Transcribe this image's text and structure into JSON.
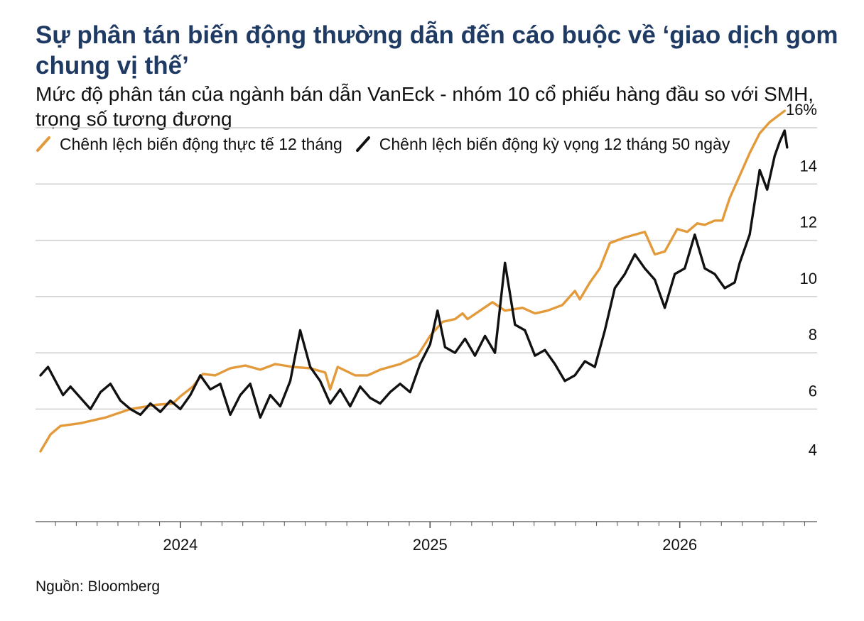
{
  "title": "Sự phân tán biến động thường dẫn đến cáo buộc về ‘giao dịch gom chung vị thế’",
  "subtitle": "Mức độ phân tán của ngành bán dẫn VanEck - nhóm 10 cổ phiếu hàng đầu so với SMH, trọng số tương đương",
  "source": "Nguồn: Bloomberg",
  "colors": {
    "realized": "#e39a3a",
    "implied": "#111111",
    "title": "#1f3a63",
    "grid": "#cfcfcf",
    "axis": "#555555"
  },
  "chart_data": {
    "type": "line",
    "title": "Sự phân tán biến động thường dẫn đến cáo buộc về ‘giao dịch gom chung vị thế’",
    "subtitle": "Mức độ phân tán của ngành bán dẫn VanEck - nhóm 10 cổ phiếu hàng đầu so với SMH, trọng số tương đương",
    "xlabel": "",
    "ylabel": "",
    "x_range": [
      2023.42,
      2026.55
    ],
    "ylim": [
      4,
      16.5
    ],
    "y_ticks": [
      4,
      6,
      8,
      10,
      12,
      14,
      16
    ],
    "y_tick_labels": [
      "4",
      "6",
      "8",
      "10",
      "12",
      "14",
      "16%"
    ],
    "x_ticks": [
      2024,
      2025,
      2026
    ],
    "x_tick_labels": [
      "2024",
      "2025",
      "2026"
    ],
    "grid": true,
    "legend_position": "top-left",
    "series": [
      {
        "name": "Chênh lệch biến động thực tế 12 tháng",
        "color": "#e39a3a",
        "points": [
          [
            2023.44,
            4.5
          ],
          [
            2023.48,
            5.1
          ],
          [
            2023.52,
            5.4
          ],
          [
            2023.6,
            5.5
          ],
          [
            2023.7,
            5.7
          ],
          [
            2023.8,
            6.0
          ],
          [
            2023.9,
            6.15
          ],
          [
            2023.97,
            6.2
          ],
          [
            2024.0,
            6.45
          ],
          [
            2024.05,
            6.8
          ],
          [
            2024.09,
            7.25
          ],
          [
            2024.14,
            7.2
          ],
          [
            2024.2,
            7.45
          ],
          [
            2024.26,
            7.55
          ],
          [
            2024.32,
            7.4
          ],
          [
            2024.38,
            7.6
          ],
          [
            2024.45,
            7.5
          ],
          [
            2024.52,
            7.45
          ],
          [
            2024.58,
            7.3
          ],
          [
            2024.6,
            6.7
          ],
          [
            2024.63,
            7.5
          ],
          [
            2024.7,
            7.2
          ],
          [
            2024.75,
            7.2
          ],
          [
            2024.8,
            7.4
          ],
          [
            2024.88,
            7.6
          ],
          [
            2024.95,
            7.9
          ],
          [
            2025.0,
            8.6
          ],
          [
            2025.05,
            9.1
          ],
          [
            2025.1,
            9.2
          ],
          [
            2025.13,
            9.4
          ],
          [
            2025.15,
            9.2
          ],
          [
            2025.2,
            9.5
          ],
          [
            2025.25,
            9.8
          ],
          [
            2025.3,
            9.5
          ],
          [
            2025.37,
            9.6
          ],
          [
            2025.42,
            9.4
          ],
          [
            2025.47,
            9.5
          ],
          [
            2025.53,
            9.7
          ],
          [
            2025.58,
            10.2
          ],
          [
            2025.6,
            9.9
          ],
          [
            2025.64,
            10.5
          ],
          [
            2025.68,
            11.0
          ],
          [
            2025.72,
            11.9
          ],
          [
            2025.78,
            12.1
          ],
          [
            2025.86,
            12.3
          ],
          [
            2025.9,
            11.5
          ],
          [
            2025.94,
            11.6
          ],
          [
            2025.99,
            12.4
          ],
          [
            2026.03,
            12.3
          ],
          [
            2026.07,
            12.6
          ],
          [
            2026.1,
            12.55
          ],
          [
            2026.14,
            12.7
          ],
          [
            2026.17,
            12.7
          ],
          [
            2026.2,
            13.5
          ],
          [
            2026.24,
            14.3
          ],
          [
            2026.28,
            15.1
          ],
          [
            2026.32,
            15.8
          ],
          [
            2026.36,
            16.2
          ],
          [
            2026.42,
            16.6
          ]
        ]
      },
      {
        "name": "Chênh lệch biến động kỳ vọng 12 tháng 50 ngày",
        "color": "#111111",
        "points": [
          [
            2023.44,
            7.2
          ],
          [
            2023.47,
            7.5
          ],
          [
            2023.5,
            7.0
          ],
          [
            2023.53,
            6.5
          ],
          [
            2023.56,
            6.8
          ],
          [
            2023.6,
            6.4
          ],
          [
            2023.64,
            6.0
          ],
          [
            2023.68,
            6.6
          ],
          [
            2023.72,
            6.9
          ],
          [
            2023.76,
            6.3
          ],
          [
            2023.8,
            6.0
          ],
          [
            2023.84,
            5.8
          ],
          [
            2023.88,
            6.2
          ],
          [
            2023.92,
            5.9
          ],
          [
            2023.96,
            6.3
          ],
          [
            2024.0,
            6.0
          ],
          [
            2024.04,
            6.5
          ],
          [
            2024.08,
            7.2
          ],
          [
            2024.12,
            6.7
          ],
          [
            2024.16,
            6.9
          ],
          [
            2024.2,
            5.8
          ],
          [
            2024.24,
            6.5
          ],
          [
            2024.28,
            6.9
          ],
          [
            2024.32,
            5.7
          ],
          [
            2024.36,
            6.5
          ],
          [
            2024.4,
            6.1
          ],
          [
            2024.44,
            7.0
          ],
          [
            2024.48,
            8.8
          ],
          [
            2024.52,
            7.5
          ],
          [
            2024.56,
            7.0
          ],
          [
            2024.6,
            6.2
          ],
          [
            2024.64,
            6.7
          ],
          [
            2024.68,
            6.1
          ],
          [
            2024.72,
            6.8
          ],
          [
            2024.76,
            6.4
          ],
          [
            2024.8,
            6.2
          ],
          [
            2024.84,
            6.6
          ],
          [
            2024.88,
            6.9
          ],
          [
            2024.92,
            6.6
          ],
          [
            2024.96,
            7.6
          ],
          [
            2025.0,
            8.3
          ],
          [
            2025.03,
            9.5
          ],
          [
            2025.06,
            8.2
          ],
          [
            2025.1,
            8.0
          ],
          [
            2025.14,
            8.5
          ],
          [
            2025.18,
            7.9
          ],
          [
            2025.22,
            8.6
          ],
          [
            2025.26,
            8.0
          ],
          [
            2025.3,
            11.2
          ],
          [
            2025.34,
            9.0
          ],
          [
            2025.38,
            8.8
          ],
          [
            2025.42,
            7.9
          ],
          [
            2025.46,
            8.1
          ],
          [
            2025.5,
            7.6
          ],
          [
            2025.54,
            7.0
          ],
          [
            2025.58,
            7.2
          ],
          [
            2025.62,
            7.7
          ],
          [
            2025.66,
            7.5
          ],
          [
            2025.7,
            8.8
          ],
          [
            2025.74,
            10.3
          ],
          [
            2025.78,
            10.8
          ],
          [
            2025.82,
            11.5
          ],
          [
            2025.86,
            11.0
          ],
          [
            2025.9,
            10.6
          ],
          [
            2025.94,
            9.6
          ],
          [
            2025.98,
            10.8
          ],
          [
            2026.02,
            11.0
          ],
          [
            2026.06,
            12.2
          ],
          [
            2026.1,
            11.0
          ],
          [
            2026.14,
            10.8
          ],
          [
            2026.18,
            10.3
          ],
          [
            2026.22,
            10.5
          ],
          [
            2026.24,
            11.2
          ],
          [
            2026.28,
            12.2
          ],
          [
            2026.32,
            14.5
          ],
          [
            2026.35,
            13.8
          ],
          [
            2026.38,
            15.0
          ],
          [
            2026.4,
            15.5
          ],
          [
            2026.42,
            15.9
          ],
          [
            2026.43,
            15.3
          ]
        ]
      }
    ]
  }
}
